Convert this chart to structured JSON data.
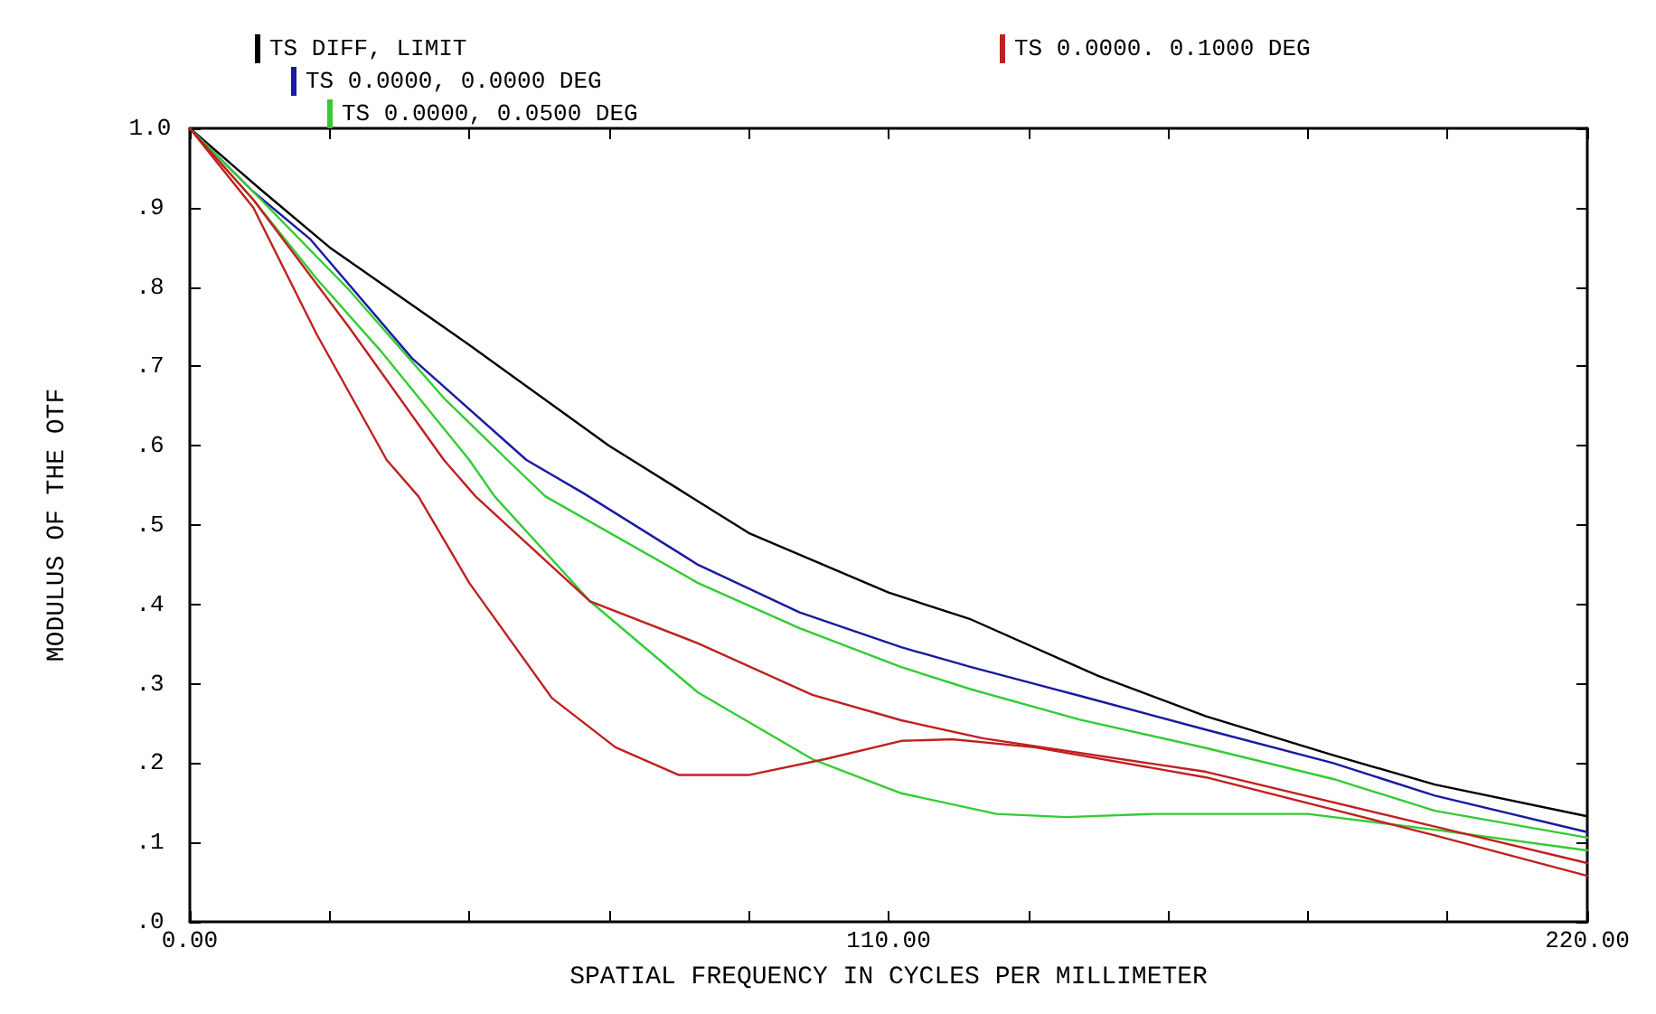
{
  "chart_data": {
    "type": "line",
    "xlabel": "SPATIAL FREQUENCY IN CYCLES PER MILLIMETER",
    "ylabel": "MODULUS OF THE OTF",
    "xlim": [
      0,
      220
    ],
    "xticks": [
      {
        "value": 0,
        "label": "0.00"
      },
      {
        "value": 22,
        "label": null
      },
      {
        "value": 44,
        "label": null
      },
      {
        "value": 66,
        "label": null
      },
      {
        "value": 88,
        "label": null
      },
      {
        "value": 110,
        "label": "110.00"
      },
      {
        "value": 132,
        "label": null
      },
      {
        "value": 154,
        "label": null
      },
      {
        "value": 176,
        "label": null
      },
      {
        "value": 198,
        "label": null
      },
      {
        "value": 220,
        "label": "220.00"
      }
    ],
    "ylim": [
      0,
      1
    ],
    "yticks": [
      {
        "value": 0,
        "label": ".0"
      },
      {
        "value": 0.1,
        "label": ".1"
      },
      {
        "value": 0.2,
        "label": ".2"
      },
      {
        "value": 0.3,
        "label": ".3"
      },
      {
        "value": 0.4,
        "label": ".4"
      },
      {
        "value": 0.5,
        "label": ".5"
      },
      {
        "value": 0.6,
        "label": ".6"
      },
      {
        "value": 0.7,
        "label": ".7"
      },
      {
        "value": 0.8,
        "label": ".8"
      },
      {
        "value": 0.9,
        "label": ".9"
      },
      {
        "value": 1,
        "label": "1.0"
      }
    ],
    "grid": false,
    "legend": "top left",
    "marker": "none",
    "line_style": "solid",
    "series": [
      {
        "name": "TS DIFF, LIMIT",
        "color": "#000000",
        "x": [
          0,
          11,
          22,
          44,
          66,
          78,
          88,
          110,
          123,
          143,
          160,
          180,
          196,
          220
        ],
        "values": [
          1,
          0.924,
          0.85,
          0.727,
          0.6,
          0.54,
          0.49,
          0.415,
          0.381,
          0.31,
          0.259,
          0.21,
          0.173,
          0.133
        ]
      },
      {
        "name": "TS 0.0000, 0.0000 DEG",
        "color": "#1a1aa0",
        "x": [
          0,
          10,
          19,
          35,
          53,
          62,
          80,
          96,
          112,
          123,
          140,
          160,
          180,
          196,
          220
        ],
        "values": [
          1,
          0.92,
          0.86,
          0.71,
          0.582,
          0.54,
          0.45,
          0.39,
          0.346,
          0.321,
          0.285,
          0.242,
          0.2,
          0.159,
          0.113
        ]
      },
      {
        "name": "TS 0.0000, 0.0500 DEG",
        "color": "#33cc33",
        "x": [
          0,
          10,
          25,
          40,
          50,
          56,
          80,
          96,
          112,
          123,
          140,
          160,
          180,
          196,
          220
        ],
        "values": [
          1,
          0.92,
          0.797,
          0.66,
          0.582,
          0.536,
          0.427,
          0.37,
          0.321,
          0.293,
          0.255,
          0.219,
          0.18,
          0.14,
          0.106
        ]
      },
      {
        "color": "#33cc33",
        "x": [
          0,
          10,
          20,
          30,
          44,
          48,
          63,
          80,
          98,
          112,
          127,
          138,
          152,
          176,
          196,
          220
        ],
        "values": [
          1,
          0.91,
          0.81,
          0.72,
          0.582,
          0.536,
          0.404,
          0.289,
          0.205,
          0.162,
          0.136,
          0.132,
          0.136,
          0.136,
          0.116,
          0.09
        ]
      },
      {
        "name": "TS 0.0000. 0.1000 DEG",
        "color": "#c02020",
        "x": [
          0,
          10,
          25,
          40,
          45,
          63,
          80,
          98,
          112,
          125,
          160,
          196,
          220
        ],
        "values": [
          1,
          0.91,
          0.75,
          0.582,
          0.536,
          0.404,
          0.351,
          0.286,
          0.254,
          0.231,
          0.189,
          0.12,
          0.074
        ]
      },
      {
        "color": "#c02020",
        "x": [
          0,
          10,
          20,
          31,
          36,
          44,
          57,
          67,
          77,
          88,
          100,
          112,
          120,
          133,
          160,
          196,
          220
        ],
        "values": [
          1,
          0.9,
          0.74,
          0.582,
          0.536,
          0.427,
          0.282,
          0.22,
          0.185,
          0.185,
          0.205,
          0.228,
          0.23,
          0.22,
          0.182,
          0.109,
          0.058
        ]
      }
    ]
  }
}
